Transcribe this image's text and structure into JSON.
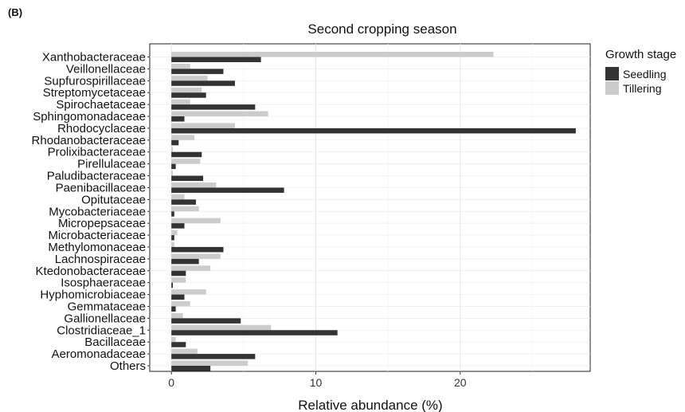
{
  "panel_label": "(B)",
  "chart_data": {
    "type": "bar",
    "orientation": "horizontal",
    "title": "Second cropping season",
    "xlabel": "Relative abundance (%)",
    "ylabel": "",
    "xlim": [
      -1.5,
      29
    ],
    "xticks": [
      0,
      10,
      20
    ],
    "grid": true,
    "legend": {
      "title": "Growth stage",
      "position": "right"
    },
    "categories": [
      "Xanthobacteraceae",
      "Veillonellaceae",
      "Supfurospirillaceae",
      "Streptomycetaceae",
      "Spirochaetaceae",
      "Sphingomonadaceae",
      "Rhodocyclaceae",
      "Rhodanobacteraceae",
      "Prolixibacteraceae",
      "Pirellulaceae",
      "Paludibacteraceae",
      "Paenibacillaceae",
      "Opitutaceae",
      "Mycobacteriaceae",
      "Micropepsaceae",
      "Microbacteriaceae",
      "Methylomonaceae",
      "Lachnospiraceae",
      "Ktedonobacteraceae",
      "Isosphaeraceae",
      "Hyphomicrobiaceae",
      "Gemmataceae",
      "Gallionellaceae",
      "Clostridiaceae_1",
      "Bacillaceae",
      "Aeromonadaceae",
      "Others"
    ],
    "series": [
      {
        "name": "Seedling",
        "color": "#333333",
        "values": [
          6.2,
          3.6,
          4.4,
          2.4,
          5.8,
          0.9,
          28.0,
          0.5,
          2.1,
          0.3,
          2.2,
          7.8,
          1.7,
          0.2,
          0.9,
          0.2,
          3.6,
          1.9,
          1.0,
          0.1,
          0.9,
          0.3,
          4.8,
          11.5,
          1.0,
          5.8,
          2.7
        ]
      },
      {
        "name": "Tillering",
        "color": "#cccccc",
        "values": [
          22.3,
          1.3,
          2.5,
          2.1,
          1.3,
          6.7,
          4.4,
          1.6,
          0.1,
          2.0,
          0.1,
          3.1,
          0.9,
          1.9,
          3.4,
          0.4,
          0.2,
          3.4,
          2.7,
          1.0,
          2.4,
          1.3,
          0.8,
          6.9,
          0.3,
          1.8,
          5.3
        ]
      }
    ]
  }
}
